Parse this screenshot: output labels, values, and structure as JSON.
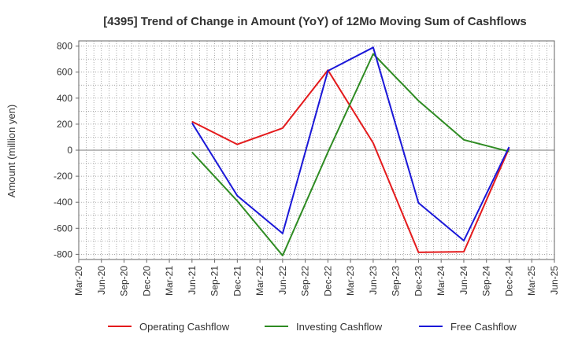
{
  "chart_data": {
    "type": "line",
    "title": "[4395]  Trend of Change in Amount (YoY) of 12Mo Moving Sum of Cashflows",
    "xlabel": "",
    "ylabel": "Amount (million yen)",
    "ylim": [
      -840,
      840
    ],
    "yticks": [
      -800,
      -600,
      -400,
      -200,
      0,
      200,
      400,
      600,
      800
    ],
    "ytick_labels": [
      "-800",
      "-600",
      "-400",
      "-200",
      "0",
      "200",
      "400",
      "600",
      "800"
    ],
    "grid": true,
    "legend_position": "bottom",
    "categories": [
      "Mar-20",
      "Jun-20",
      "Sep-20",
      "Dec-20",
      "Mar-21",
      "Jun-21",
      "Sep-21",
      "Dec-21",
      "Mar-22",
      "Jun-22",
      "Sep-22",
      "Dec-22",
      "Mar-23",
      "Jun-23",
      "Sep-23",
      "Dec-23",
      "Mar-24",
      "Jun-24",
      "Sep-24",
      "Dec-24",
      "Mar-25",
      "Jun-25"
    ],
    "series": [
      {
        "name": "Operating Cashflow",
        "color": "#e41a1c",
        "values": [
          null,
          null,
          null,
          null,
          null,
          220,
          null,
          45,
          null,
          170,
          null,
          615,
          null,
          55,
          null,
          -785,
          null,
          -780,
          null,
          15,
          null,
          null
        ]
      },
      {
        "name": "Investing Cashflow",
        "color": "#2e8b22",
        "values": [
          null,
          null,
          null,
          null,
          null,
          -15,
          null,
          -390,
          null,
          -810,
          null,
          -15,
          null,
          740,
          null,
          380,
          null,
          80,
          null,
          -10,
          null,
          null
        ]
      },
      {
        "name": "Free Cashflow",
        "color": "#1a17d8",
        "values": [
          null,
          null,
          null,
          null,
          null,
          210,
          null,
          -350,
          null,
          -640,
          null,
          610,
          null,
          790,
          null,
          -405,
          null,
          -695,
          null,
          25,
          null,
          null
        ]
      }
    ]
  }
}
